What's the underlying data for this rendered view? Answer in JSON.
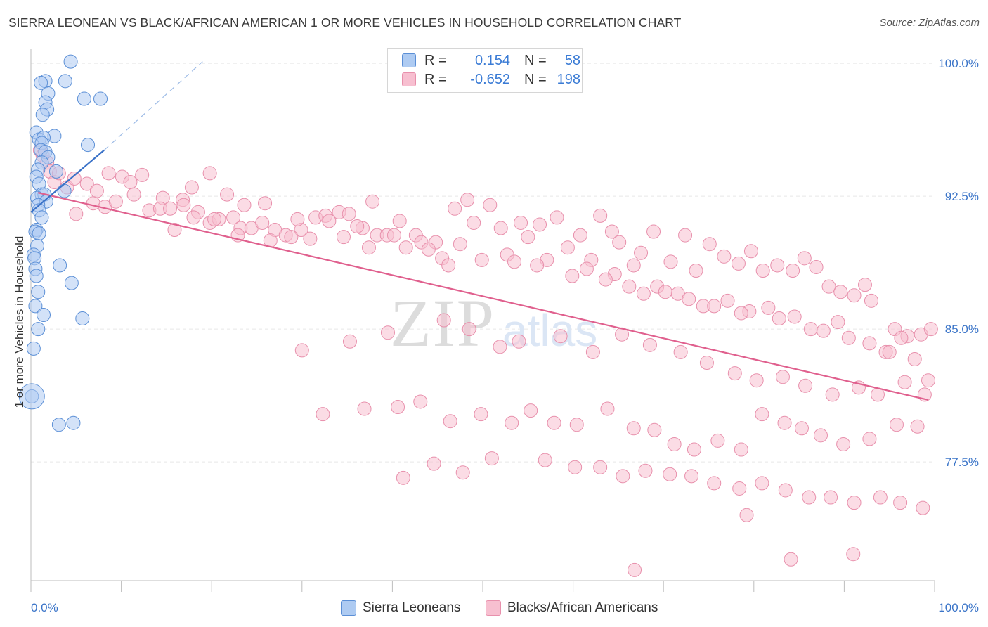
{
  "title": "SIERRA LEONEAN VS BLACK/AFRICAN AMERICAN 1 OR MORE VEHICLES IN HOUSEHOLD CORRELATION CHART",
  "source": "Source: ZipAtlas.com",
  "watermark": {
    "zip": "ZIP",
    "atlas": "atlas"
  },
  "legend_stats": [
    {
      "r_label": "R =",
      "r_value": "0.154",
      "n_label": "N =",
      "n_value": "58"
    },
    {
      "r_label": "R =",
      "r_value": "-0.652",
      "n_label": "N =",
      "n_value": "198"
    }
  ],
  "colors": {
    "blue_fill": "#aecbf2",
    "blue_stroke": "#5b8fd6",
    "blue_line": "#3a72c8",
    "pink_fill": "#f7bfd0",
    "pink_stroke": "#e890ac",
    "pink_line": "#e0608e",
    "tick_label": "#3a74c8",
    "grid": "#e8e8e8"
  },
  "chart_data": {
    "type": "scatter",
    "title": "SIERRA LEONEAN VS BLACK/AFRICAN AMERICAN 1 OR MORE VEHICLES IN HOUSEHOLD CORRELATION CHART",
    "xlabel": "",
    "ylabel": "1 or more Vehicles in Household",
    "xlim": [
      0,
      100
    ],
    "ylim": [
      70.8,
      100.8
    ],
    "x_tick_labels": [
      "0.0%",
      "100.0%"
    ],
    "y_ticks": [
      77.5,
      85.0,
      92.5,
      100.0
    ],
    "y_tick_labels": [
      "77.5%",
      "85.0%",
      "92.5%",
      "100.0%"
    ],
    "grid": true,
    "legend_position": "bottom",
    "series": [
      {
        "name": "Sierra Leoneans",
        "r": 0.154,
        "n": 58,
        "trend": {
          "x": [
            0.0,
            8.1
          ],
          "y": [
            91.6,
            95.1
          ]
        },
        "trend_extension": {
          "x": [
            8.1,
            19.0
          ],
          "y": [
            95.1,
            100.1
          ]
        },
        "points": [
          [
            4.4,
            100.1
          ],
          [
            1.6,
            99.0
          ],
          [
            3.8,
            99.0
          ],
          [
            1.1,
            98.9
          ],
          [
            1.9,
            98.3
          ],
          [
            5.9,
            98.0
          ],
          [
            7.7,
            98.0
          ],
          [
            1.6,
            97.8
          ],
          [
            1.8,
            97.4
          ],
          [
            1.3,
            97.1
          ],
          [
            0.6,
            96.1
          ],
          [
            2.6,
            95.9
          ],
          [
            0.9,
            95.7
          ],
          [
            1.4,
            95.8
          ],
          [
            1.2,
            95.5
          ],
          [
            6.3,
            95.4
          ],
          [
            1.1,
            95.1
          ],
          [
            1.6,
            95.0
          ],
          [
            1.9,
            94.7
          ],
          [
            1.2,
            94.4
          ],
          [
            0.8,
            94.0
          ],
          [
            0.6,
            93.6
          ],
          [
            2.8,
            93.9
          ],
          [
            0.9,
            93.2
          ],
          [
            3.7,
            92.8
          ],
          [
            1.2,
            92.6
          ],
          [
            1.5,
            92.6
          ],
          [
            0.7,
            92.4
          ],
          [
            1.7,
            92.2
          ],
          [
            0.8,
            92.0
          ],
          [
            0.9,
            91.7
          ],
          [
            1.2,
            91.3
          ],
          [
            0.6,
            90.6
          ],
          [
            0.5,
            90.5
          ],
          [
            0.9,
            90.4
          ],
          [
            0.7,
            89.7
          ],
          [
            0.3,
            89.2
          ],
          [
            0.4,
            89.0
          ],
          [
            0.5,
            88.4
          ],
          [
            0.6,
            88.0
          ],
          [
            3.2,
            88.6
          ],
          [
            4.5,
            87.6
          ],
          [
            0.8,
            87.1
          ],
          [
            0.5,
            86.3
          ],
          [
            1.4,
            85.8
          ],
          [
            5.7,
            85.6
          ],
          [
            0.8,
            85.0
          ],
          [
            0.3,
            83.9
          ],
          [
            0.1,
            81.2
          ],
          [
            3.1,
            79.6
          ],
          [
            4.7,
            79.7
          ]
        ]
      },
      {
        "name": "Blacks/African Americans",
        "r": -0.652,
        "n": 198,
        "trend": {
          "x": [
            0.8,
            99.3
          ],
          "y": [
            92.7,
            81.0
          ]
        },
        "points": [
          [
            1.0,
            95.1
          ],
          [
            1.3,
            94.8
          ],
          [
            1.8,
            94.4
          ],
          [
            2.1,
            93.9
          ],
          [
            2.6,
            93.3
          ],
          [
            3.1,
            93.8
          ],
          [
            4.0,
            93.0
          ],
          [
            4.8,
            93.5
          ],
          [
            6.2,
            93.2
          ],
          [
            7.3,
            92.8
          ],
          [
            8.6,
            93.8
          ],
          [
            10.1,
            93.6
          ],
          [
            11.0,
            93.3
          ],
          [
            12.3,
            93.7
          ],
          [
            14.6,
            92.4
          ],
          [
            16.8,
            92.3
          ],
          [
            17.8,
            93.0
          ],
          [
            19.8,
            93.8
          ],
          [
            21.7,
            92.6
          ],
          [
            5.0,
            91.5
          ],
          [
            6.9,
            92.1
          ],
          [
            8.2,
            91.9
          ],
          [
            9.4,
            92.2
          ],
          [
            11.4,
            92.6
          ],
          [
            13.1,
            91.7
          ],
          [
            14.3,
            91.8
          ],
          [
            15.4,
            91.8
          ],
          [
            16.9,
            92.0
          ],
          [
            18.5,
            91.6
          ],
          [
            19.8,
            91.0
          ],
          [
            20.8,
            91.2
          ],
          [
            22.4,
            91.3
          ],
          [
            23.2,
            90.7
          ],
          [
            24.4,
            90.7
          ],
          [
            25.6,
            91.0
          ],
          [
            27.0,
            90.6
          ],
          [
            28.2,
            90.3
          ],
          [
            29.9,
            90.6
          ],
          [
            31.5,
            91.3
          ],
          [
            32.6,
            91.4
          ],
          [
            34.1,
            91.6
          ],
          [
            35.2,
            91.5
          ],
          [
            36.7,
            90.7
          ],
          [
            37.8,
            92.2
          ],
          [
            38.3,
            90.3
          ],
          [
            39.4,
            90.3
          ],
          [
            40.8,
            91.1
          ],
          [
            42.6,
            90.3
          ],
          [
            44.8,
            89.9
          ],
          [
            45.5,
            89.0
          ],
          [
            46.9,
            91.8
          ],
          [
            48.3,
            92.3
          ],
          [
            49.0,
            91.0
          ],
          [
            50.8,
            92.0
          ],
          [
            52.0,
            90.7
          ],
          [
            54.2,
            91.0
          ],
          [
            55.0,
            90.2
          ],
          [
            56.3,
            90.9
          ],
          [
            58.2,
            91.3
          ],
          [
            59.4,
            89.6
          ],
          [
            60.8,
            90.3
          ],
          [
            62.0,
            88.9
          ],
          [
            63.0,
            91.4
          ],
          [
            64.3,
            90.5
          ],
          [
            65.1,
            89.9
          ],
          [
            66.7,
            88.6
          ],
          [
            67.5,
            89.3
          ],
          [
            68.9,
            90.5
          ],
          [
            70.8,
            88.8
          ],
          [
            72.4,
            90.3
          ],
          [
            73.6,
            88.3
          ],
          [
            75.1,
            89.8
          ],
          [
            76.7,
            89.1
          ],
          [
            78.3,
            88.7
          ],
          [
            79.7,
            89.4
          ],
          [
            81.0,
            88.3
          ],
          [
            82.6,
            88.6
          ],
          [
            84.3,
            88.3
          ],
          [
            85.6,
            89.0
          ],
          [
            86.9,
            88.5
          ],
          [
            88.3,
            87.4
          ],
          [
            89.6,
            87.1
          ],
          [
            91.1,
            86.9
          ],
          [
            92.3,
            87.5
          ],
          [
            93.0,
            86.6
          ],
          [
            95.6,
            85.0
          ],
          [
            97.0,
            84.6
          ],
          [
            98.5,
            84.7
          ],
          [
            99.6,
            85.0
          ],
          [
            23.6,
            92.0
          ],
          [
            25.9,
            92.1
          ],
          [
            29.5,
            91.2
          ],
          [
            33.0,
            91.1
          ],
          [
            36.1,
            90.8
          ],
          [
            40.2,
            90.3
          ],
          [
            43.2,
            89.9
          ],
          [
            47.5,
            89.8
          ],
          [
            52.7,
            89.2
          ],
          [
            57.1,
            88.9
          ],
          [
            61.5,
            88.4
          ],
          [
            64.6,
            88.1
          ],
          [
            66.2,
            87.4
          ],
          [
            69.3,
            87.4
          ],
          [
            71.6,
            87.0
          ],
          [
            74.4,
            86.3
          ],
          [
            77.1,
            86.6
          ],
          [
            79.5,
            86.0
          ],
          [
            82.8,
            85.6
          ],
          [
            86.3,
            85.0
          ],
          [
            89.3,
            85.4
          ],
          [
            94.6,
            83.7
          ],
          [
            96.3,
            84.5
          ],
          [
            97.8,
            83.3
          ],
          [
            98.9,
            81.3
          ],
          [
            15.9,
            90.6
          ],
          [
            18.0,
            91.3
          ],
          [
            20.3,
            91.2
          ],
          [
            22.9,
            90.3
          ],
          [
            26.5,
            90.0
          ],
          [
            28.8,
            90.2
          ],
          [
            30.9,
            90.1
          ],
          [
            34.6,
            90.2
          ],
          [
            37.4,
            89.6
          ],
          [
            41.5,
            89.6
          ],
          [
            44.0,
            89.5
          ],
          [
            46.2,
            88.6
          ],
          [
            49.9,
            88.9
          ],
          [
            53.5,
            88.8
          ],
          [
            56.0,
            88.6
          ],
          [
            59.9,
            88.0
          ],
          [
            63.6,
            87.8
          ],
          [
            67.8,
            87.0
          ],
          [
            70.2,
            87.1
          ],
          [
            72.8,
            86.7
          ],
          [
            75.6,
            86.3
          ],
          [
            78.6,
            85.9
          ],
          [
            81.6,
            86.2
          ],
          [
            84.5,
            85.7
          ],
          [
            87.7,
            84.9
          ],
          [
            90.5,
            84.5
          ],
          [
            92.8,
            84.2
          ],
          [
            95.0,
            83.7
          ],
          [
            96.7,
            82.0
          ],
          [
            99.3,
            82.1
          ],
          [
            30.0,
            83.8
          ],
          [
            35.3,
            84.3
          ],
          [
            39.5,
            84.8
          ],
          [
            45.7,
            85.5
          ],
          [
            48.5,
            85.0
          ],
          [
            51.9,
            84.0
          ],
          [
            54.0,
            84.3
          ],
          [
            58.6,
            84.6
          ],
          [
            62.2,
            83.7
          ],
          [
            65.4,
            84.7
          ],
          [
            68.5,
            84.1
          ],
          [
            71.9,
            83.7
          ],
          [
            74.8,
            83.1
          ],
          [
            77.9,
            82.5
          ],
          [
            80.3,
            82.1
          ],
          [
            83.2,
            82.3
          ],
          [
            85.7,
            81.8
          ],
          [
            88.7,
            81.3
          ],
          [
            91.6,
            81.7
          ],
          [
            93.7,
            81.3
          ],
          [
            32.3,
            80.2
          ],
          [
            36.9,
            80.5
          ],
          [
            40.6,
            80.6
          ],
          [
            43.1,
            80.9
          ],
          [
            46.4,
            79.8
          ],
          [
            49.8,
            80.2
          ],
          [
            53.2,
            79.7
          ],
          [
            55.3,
            80.4
          ],
          [
            57.9,
            79.7
          ],
          [
            60.4,
            79.6
          ],
          [
            63.8,
            80.5
          ],
          [
            66.7,
            79.4
          ],
          [
            69.0,
            79.3
          ],
          [
            71.2,
            78.5
          ],
          [
            73.4,
            78.2
          ],
          [
            76.0,
            78.7
          ],
          [
            78.6,
            78.2
          ],
          [
            80.9,
            80.2
          ],
          [
            83.4,
            79.7
          ],
          [
            85.3,
            79.4
          ],
          [
            87.4,
            79.0
          ],
          [
            89.9,
            78.5
          ],
          [
            92.8,
            78.8
          ],
          [
            95.8,
            79.6
          ],
          [
            98.1,
            79.5
          ],
          [
            41.2,
            76.6
          ],
          [
            44.6,
            77.4
          ],
          [
            47.8,
            76.9
          ],
          [
            51.0,
            77.7
          ],
          [
            56.9,
            77.6
          ],
          [
            60.2,
            77.2
          ],
          [
            63.0,
            77.2
          ],
          [
            65.5,
            76.7
          ],
          [
            68.0,
            77.0
          ],
          [
            70.7,
            76.8
          ],
          [
            73.1,
            76.7
          ],
          [
            75.6,
            76.3
          ],
          [
            78.4,
            76.0
          ],
          [
            80.9,
            76.3
          ],
          [
            83.5,
            75.9
          ],
          [
            86.1,
            75.5
          ],
          [
            88.5,
            75.5
          ],
          [
            91.1,
            75.2
          ],
          [
            94.0,
            75.5
          ],
          [
            96.2,
            75.2
          ],
          [
            98.7,
            74.9
          ],
          [
            66.8,
            71.4
          ],
          [
            79.2,
            74.5
          ],
          [
            84.1,
            72.0
          ],
          [
            91.0,
            72.3
          ]
        ]
      }
    ]
  },
  "bottom_legend": [
    {
      "label": "Sierra Leoneans"
    },
    {
      "label": "Blacks/African Americans"
    }
  ]
}
